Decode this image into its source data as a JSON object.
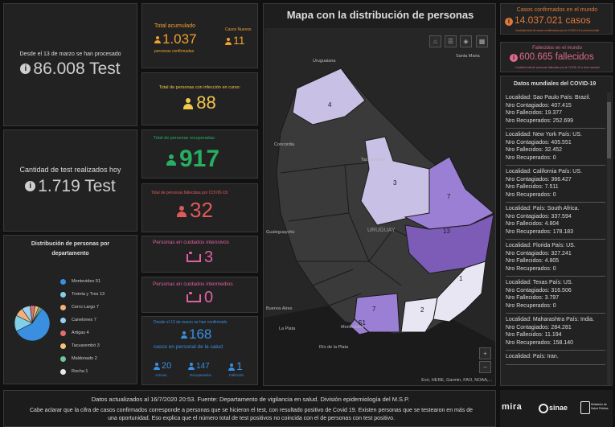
{
  "test_total": {
    "caption": "Desde el 13 de marzo se han procesado",
    "value": "86.008 Test"
  },
  "test_today": {
    "caption": "Cantidad de test realizados hoy",
    "value": "1.719 Test"
  },
  "accumulated": {
    "title": "Total acumulado",
    "value": "1.037",
    "subtitle": "personas confirmadas",
    "new_title": "Casos Nuevos",
    "new_value": "11"
  },
  "active": {
    "title": "Total de personas con infección en curso:",
    "value": "88"
  },
  "recovered": {
    "title": "Total de personas recuperadas:",
    "value": "917"
  },
  "deceased": {
    "title": "Total de personas fallecidas por COVID-19:",
    "value": "32"
  },
  "intensive": {
    "title": "Personas en cuidados intensivos",
    "value": "3"
  },
  "intermediate": {
    "title": "Personas en cuidados intermedios",
    "value": "0"
  },
  "health_staff": {
    "title": "Desde el 13 de marzo se han confirmado",
    "value": "168",
    "subtitle": "casos en personal de la salud",
    "active_value": "20",
    "active_label": "Activos",
    "recovered_value": "147",
    "recovered_label": "Recuperados",
    "deceased_value": "1",
    "deceased_label": "Fallecido"
  },
  "department_chart": {
    "title": "Distribución de personas por departamento",
    "chart_data": {
      "type": "pie",
      "categories": [
        "Montevideo",
        "Treinta y Tres",
        "Cerro Largo",
        "Canelones",
        "Artigas",
        "Tacuarembó",
        "Maldonado",
        "Rocha"
      ],
      "values": [
        51,
        13,
        7,
        7,
        4,
        3,
        2,
        1
      ],
      "colors": [
        "#3a8fe0",
        "#7fd0e8",
        "#f3b07a",
        "#9ad0f0",
        "#e07070",
        "#f2c47a",
        "#6fc49a",
        "#e8e8e8"
      ],
      "legend": "right"
    }
  },
  "map": {
    "title": "Mapa con la distribución de personas",
    "attribution": "Esri, HERE, Garmin, FAO, NOAA,...",
    "labels": {
      "country": "URUGUAY",
      "uruguaiana": "Uruguaiana",
      "santa_maria": "Santa Maria",
      "concordia": "Concordia",
      "tacuarembo": "Tacuarembó",
      "gualeguaychu": "Gualeguaychú",
      "buenos_aires": "Buenos Aires",
      "la_plata": "La Plata",
      "montevideo": "Montevideo",
      "rio_de_la_plata": "Río de la Plata"
    },
    "regions": {
      "artigas": "4",
      "tacuarembo": "3",
      "cerro_largo": "7",
      "treinta_y_tres": "13",
      "rocha": "1",
      "maldonado": "2",
      "canelones": "7",
      "montevideo": "51"
    },
    "zoom_in": "+",
    "zoom_out": "−"
  },
  "world_confirmed": {
    "title": "Casos confirmados en el mundo",
    "value": "14.037.021 casos",
    "note": "Cantidad total de casos confirmados por la COVID-19 a nivel mundial"
  },
  "world_deceased": {
    "title": "Fallecidos en el mundo",
    "value": "600.665 fallecidos",
    "note": "Cantidad total de personas fallecidas por la COVID-19 a nivel mundial"
  },
  "world_list": {
    "title": "Datos mundiales del COVID-19",
    "labels": {
      "contagiados": "Nro Contagiados:",
      "fallecidos": "Nro Fallecidos:",
      "recuperados": "Nro Recuperados:"
    },
    "entries": [
      {
        "location": "Localidad: Sao Paulo País: Brazil.",
        "contagiados": "407.415",
        "fallecidos": "19.377",
        "recuperados": "252.699"
      },
      {
        "location": "Localidad: New York País: US.",
        "contagiados": "405.551",
        "fallecidos": "32.452",
        "recuperados": "0"
      },
      {
        "location": "Localidad: California País: US.",
        "contagiados": "366.427",
        "fallecidos": "7.511",
        "recuperados": "0"
      },
      {
        "location": "Localidad:  País: South Africa.",
        "contagiados": "337.594",
        "fallecidos": "4.804",
        "recuperados": "178.183"
      },
      {
        "location": "Localidad: Florida País: US.",
        "contagiados": "327.241",
        "fallecidos": "4.805",
        "recuperados": "0"
      },
      {
        "location": "Localidad: Texas País: US.",
        "contagiados": "316.506",
        "fallecidos": "3.797",
        "recuperados": "0"
      },
      {
        "location": "Localidad: Maharashtra País: India.",
        "contagiados": "284.281",
        "fallecidos": "11.194",
        "recuperados": "158.140"
      },
      {
        "location": "Localidad:  País: Iran.",
        "contagiados": "",
        "fallecidos": "",
        "recuperados": ""
      }
    ]
  },
  "footer": {
    "updated": "Datos actualizados al 16/7/2020 20:53. Fuente: Departamento de vigilancia en salud. División epidemiología del M.S.P.",
    "note": "Cabe aclarar que la cifra de casos confirmados corresponde a personas que se hicieron el test, con resultado positivo de Covid 19. Existen personas que se testearon en más de una oportunidad. Eso explica que el número total de test positivos no coincida con el de personas con test positivo.",
    "logo1": "mira",
    "logo2": "sinae",
    "logo3": "Ministerio de Salud Pública"
  }
}
